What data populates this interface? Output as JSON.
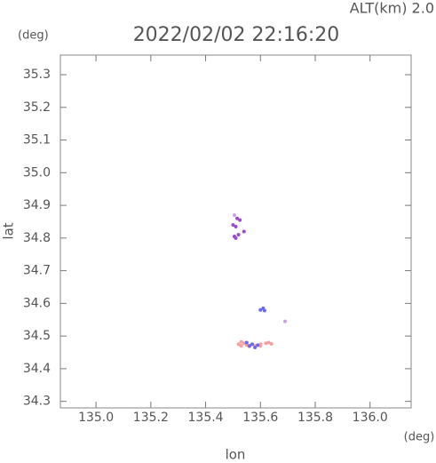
{
  "chart_data": {
    "type": "scatter",
    "title": "2022/02/02 22:16:20",
    "subtitle": "ALT(km) 2.0",
    "x_label": "lon",
    "x_unit": "(deg)",
    "y_label": "lat",
    "y_unit": "(deg)",
    "xlim": [
      134.87,
      136.15
    ],
    "ylim": [
      34.28,
      35.36
    ],
    "xticks": [
      {
        "value": 135.0,
        "label": "135.0"
      },
      {
        "value": 135.2,
        "label": "135.2"
      },
      {
        "value": 135.4,
        "label": "135.4"
      },
      {
        "value": 135.6,
        "label": "135.6"
      },
      {
        "value": 135.8,
        "label": "135.8"
      },
      {
        "value": 136.0,
        "label": "136.0"
      }
    ],
    "yticks": [
      34.3,
      34.4,
      34.5,
      34.6,
      34.7,
      34.8,
      34.9,
      {
        "value": 35.0,
        "label": "35.0"
      },
      35.1,
      35.2,
      35.3
    ],
    "series": [
      {
        "color": "#f4a0a0",
        "x": [
          135.52,
          135.53,
          135.54,
          135.55,
          135.58,
          135.6,
          135.62,
          135.63,
          135.64,
          135.53,
          135.56,
          135.6
        ],
        "values": [
          34.475,
          34.47,
          34.478,
          34.472,
          34.47,
          34.475,
          34.478,
          34.48,
          34.476,
          34.482,
          34.468,
          34.47
        ]
      },
      {
        "color": "#6a6af0",
        "x": [
          135.6,
          135.61,
          135.615,
          135.56,
          135.57,
          135.58,
          135.59,
          135.55
        ],
        "values": [
          34.58,
          34.585,
          34.578,
          34.47,
          34.475,
          34.465,
          34.472,
          34.48
        ]
      },
      {
        "color": "#9a4ad0",
        "x": [
          135.5,
          135.51,
          135.505,
          135.51,
          135.52,
          135.54,
          135.515,
          135.525
        ],
        "values": [
          34.84,
          34.835,
          34.805,
          34.8,
          34.81,
          34.82,
          34.86,
          34.855
        ]
      },
      {
        "color": "#c8a0e8",
        "x": [
          135.69,
          135.505
        ],
        "values": [
          34.545,
          34.87
        ]
      }
    ]
  }
}
